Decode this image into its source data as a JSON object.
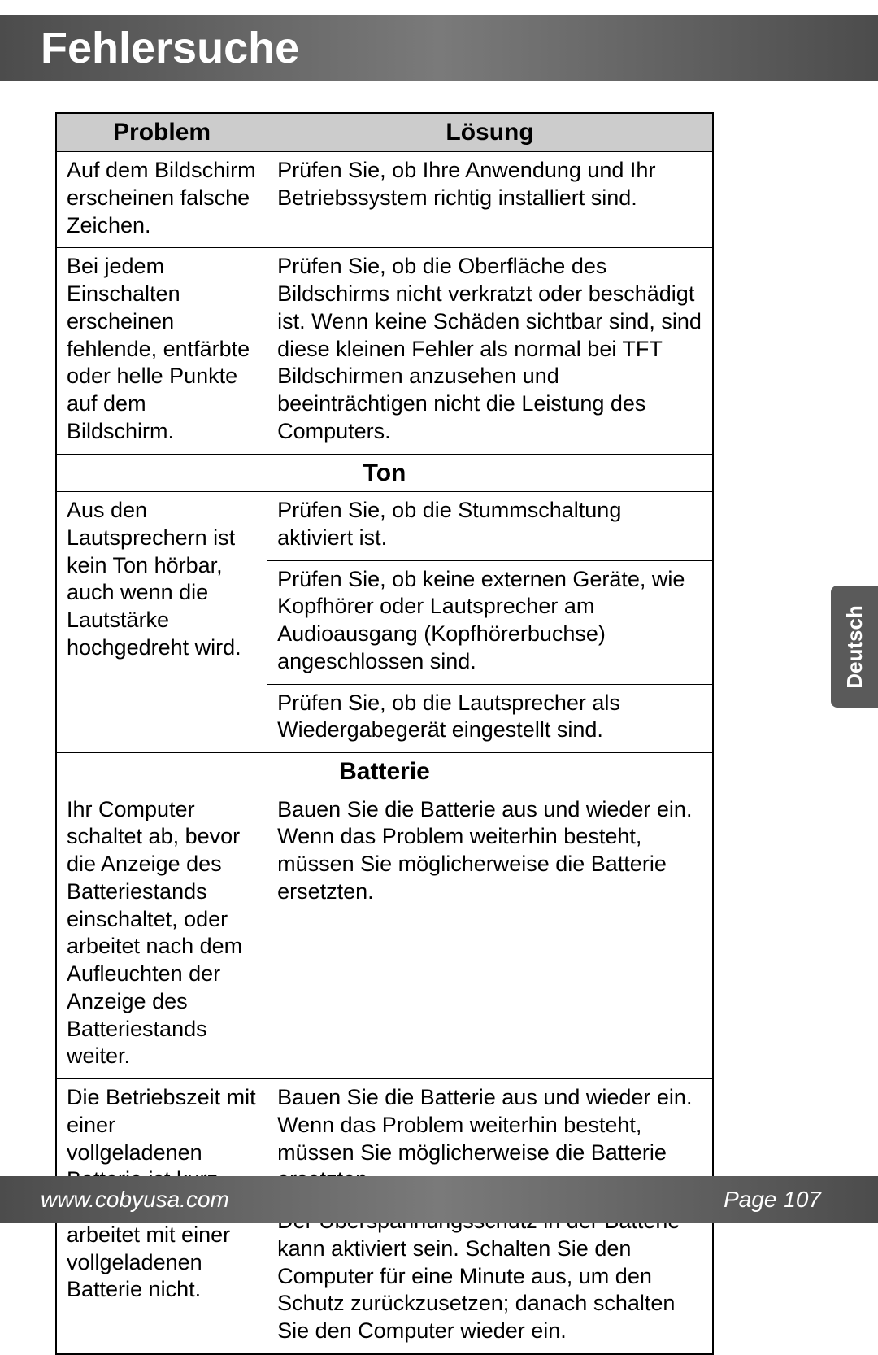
{
  "header": {
    "title": "Fehlersuche"
  },
  "sideTab": {
    "label": "Deutsch"
  },
  "footer": {
    "url": "www.cobyusa.com",
    "page": "Page 107"
  },
  "table": {
    "headers": {
      "problem": "Problem",
      "solution": "Lösung"
    },
    "sections": {
      "ton": "Ton",
      "batterie": "Batterie"
    },
    "rows": {
      "r1p": "Auf dem Bildschirm er­scheinen falsche Zeichen.",
      "r1s": "Prüfen Sie, ob Ihre Anwendung und Ihr Betriebssystem richtig installiert sind.",
      "r2p": "Bei jedem Einschalten erscheinen fehlende, ent­färbte oder helle Punkte auf dem Bildschirm.",
      "r2s": "Prüfen Sie, ob die Oberfläche des Bildschirms nicht verkratzt oder beschädigt ist. Wenn keine Schäden sichtbar sind, sind diese kleinen Fehler als normal bei TFT Bildschirmen anzusehen und beeinträchtigen nicht die Leistung des Computers.",
      "r3p": "Aus den Lautsprechern ist kein Ton hörbar, auch wenn die Lautstärke hochgedreht wird.",
      "r3s1": "Prüfen Sie, ob die Stummschaltung aktiviert ist.",
      "r3s2": "Prüfen Sie, ob keine externen Geräte, wie Kopfhörer oder Laut­sprecher am Audioausgang (Kopfhörerbuchse) angeschlossen sind.",
      "r3s3": "Prüfen Sie, ob die Lautsprecher als Wiedergabegerät eingestellt sind.",
      "r4p": "Ihr Computer schaltet ab, bevor die Anzeige des Batteriestands einschal­tet, oder arbeitet nach dem Aufleuchten der Anzeige des Batterie­stands weiter.",
      "r4s": "Bauen Sie die Batterie aus und wieder ein. Wenn das Problem weiterhin besteht, müssen Sie möglicherweise die Batterie ersetzten.",
      "r5p": "Die Betriebszeit mit einer vollgeladenen Batterie ist kurz, oder der Computer arbeitet mit einer vollge­ladenen Batterie nicht.",
      "r5s1": "Bauen Sie die Batterie aus und wieder ein. Wenn das Problem weiterhin besteht, müssen Sie möglicherweise die Batterie ersetzten.",
      "r5s2": "Der Überspannungsschutz in der Batterie kann aktiviert sein. Schalten Sie den Computer für eine Minute aus, um den Schutz zurückzusetzen; danach schalten Sie den Computer wieder ein."
    }
  }
}
